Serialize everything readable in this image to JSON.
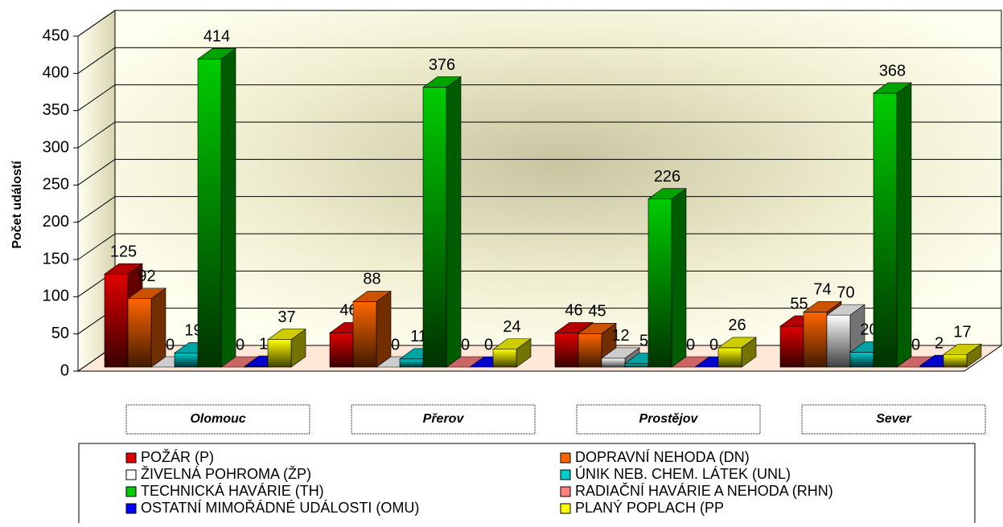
{
  "chart_data": {
    "type": "bar",
    "ylabel": "Počet událostí",
    "categories": [
      "Olomouc",
      "Přerov",
      "Prostějov",
      "Sever"
    ],
    "series": [
      {
        "name": "POŽÁR (P)",
        "color": "#e00000",
        "values": [
          125,
          46,
          46,
          55
        ]
      },
      {
        "name": "DOPRAVNÍ NEHODA (DN)",
        "color": "#ff6600",
        "values": [
          92,
          88,
          45,
          74
        ]
      },
      {
        "name": "ŽIVELNÁ POHROMA (ŽP)",
        "color": "#ffffff",
        "values": [
          0,
          0,
          12,
          70
        ]
      },
      {
        "name": "ÚNIK  NEB. CHEM. LÁTEK (UNL)",
        "color": "#00cccc",
        "values": [
          19,
          11,
          5,
          20
        ]
      },
      {
        "name": "TECHNICKÁ HAVÁRIE (TH)",
        "color": "#00cc00",
        "values": [
          414,
          376,
          226,
          368
        ]
      },
      {
        "name": "RADIAČNÍ HAVÁRIE A NEHODA (RHN)",
        "color": "#ff8080",
        "values": [
          0,
          0,
          0,
          0
        ]
      },
      {
        "name": "OSTATNÍ MIMOŘÁDNÉ UDÁLOSTI (OMU)",
        "color": "#0000ff",
        "values": [
          1,
          0,
          0,
          2
        ]
      },
      {
        "name": "PLANÝ POPLACH (PP",
        "color": "#ffff00",
        "values": [
          37,
          24,
          26,
          17
        ]
      }
    ],
    "ylim": [
      0,
      450
    ],
    "yticks": [
      0,
      50,
      100,
      150,
      200,
      250,
      300,
      350,
      400,
      450
    ],
    "grid": true,
    "legend": "bottom"
  }
}
